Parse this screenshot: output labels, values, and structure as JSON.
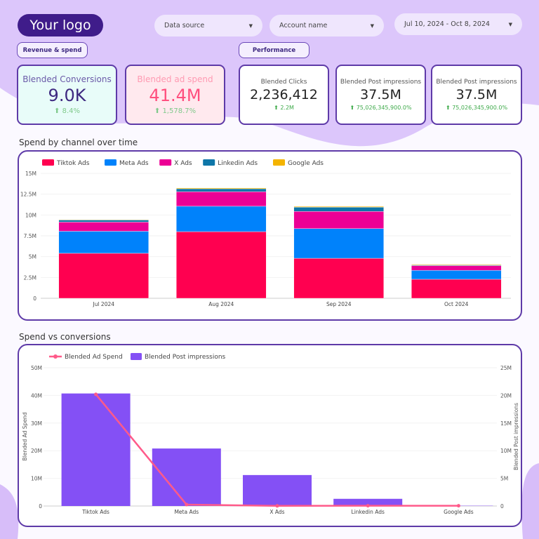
{
  "header": {
    "logo": "Your logo",
    "filters": [
      {
        "label": "Data source"
      },
      {
        "label": "Account name"
      },
      {
        "label": "Jul 10, 2024 - Oct 8, 2024"
      }
    ]
  },
  "sections": {
    "revenue": "Revenue & spend",
    "performance": "Performance"
  },
  "kpis": [
    {
      "label": "Blended Conversions",
      "value": "9.0K",
      "delta": "8.4%"
    },
    {
      "label": "Blended ad spend",
      "value": "41.4M",
      "delta": "1,578.7%"
    },
    {
      "label": "Blended Clicks",
      "value": "2,236,412",
      "delta": "2.2M"
    },
    {
      "label": "Blended Post impressions",
      "value": "37.5M",
      "delta": "75,026,345,900.0%"
    },
    {
      "label": "Blended Post impressions",
      "value": "37.5M",
      "delta": "75,026,345,900.0%"
    }
  ],
  "colors": {
    "accent": "#5e3aa8",
    "tiktok": "#ff0050",
    "meta": "#0082fb",
    "x": "#ec0095",
    "linkedin": "#0e76a8",
    "google": "#f4b400",
    "bar": "#8450f5",
    "line": "#ff5a8a"
  },
  "chart_data": [
    {
      "type": "bar",
      "stacked": true,
      "title": "Spend by channel over time",
      "categories": [
        "Jul 2024",
        "Aug 2024",
        "Sep 2024",
        "Oct 2024"
      ],
      "ylim": [
        0,
        15000000
      ],
      "yticks": [
        "0",
        "2.5M",
        "5M",
        "7.5M",
        "10M",
        "12.5M",
        "15M"
      ],
      "legend": "top-left",
      "grid": true,
      "series": [
        {
          "name": "Tiktok Ads",
          "values": [
            5400000,
            8000000,
            4800000,
            2280000
          ]
        },
        {
          "name": "Meta Ads",
          "values": [
            2650000,
            3050000,
            3570000,
            1070000
          ]
        },
        {
          "name": "X Ads",
          "values": [
            1100000,
            1750000,
            2060000,
            570000
          ]
        },
        {
          "name": "Linkedin Ads",
          "values": [
            250000,
            350000,
            500000,
            80000
          ]
        },
        {
          "name": "Google Ads",
          "values": [
            50000,
            100000,
            100000,
            80000
          ]
        }
      ]
    },
    {
      "type": "bar+line",
      "title": "Spend vs conversions",
      "categories": [
        "Tiktok Ads",
        "Meta Ads",
        "X Ads",
        "Linkedin Ads",
        "Google Ads"
      ],
      "ylabel": "Blended Ad Spend",
      "y2label": "Blended Post impressions",
      "ylim": [
        0,
        50000000
      ],
      "y2lim": [
        0,
        25000000
      ],
      "yticks": [
        "0",
        "10M",
        "20M",
        "30M",
        "40M",
        "50M"
      ],
      "y2ticks": [
        "0",
        "5M",
        "10M",
        "15M",
        "20M",
        "25M"
      ],
      "legend": "top-left",
      "grid": true,
      "series": [
        {
          "name": "Blended Ad Spend",
          "type": "line",
          "axis": "left",
          "values": [
            40400000,
            500000,
            50000,
            100000,
            100000
          ]
        },
        {
          "name": "Blended Post impressions",
          "type": "bar",
          "axis": "right",
          "values": [
            20350000,
            10400000,
            5600000,
            1300000,
            50000
          ]
        }
      ]
    }
  ]
}
